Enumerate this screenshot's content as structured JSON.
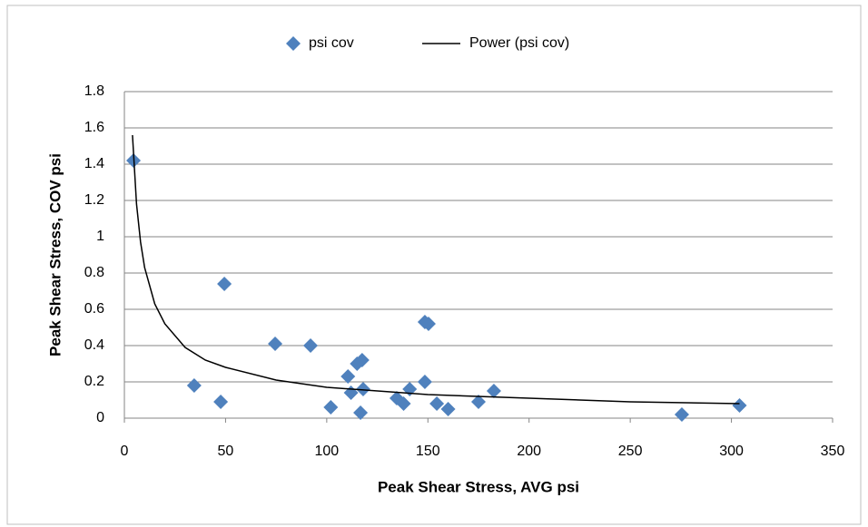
{
  "chart_data": {
    "type": "scatter",
    "xlabel": "Peak Shear Stress, AVG psi",
    "ylabel": "Peak Shear Stress, COV psi",
    "xlim": [
      0,
      350
    ],
    "xticks": [
      0,
      50,
      100,
      150,
      200,
      250,
      300,
      350
    ],
    "ylim": [
      0,
      1.8
    ],
    "yticks": [
      0,
      0.2,
      0.4,
      0.6,
      0.8,
      1,
      1.2,
      1.4,
      1.6,
      1.8
    ],
    "grid": true,
    "legend": "top",
    "series": [
      {
        "name": "psi cov",
        "color": "#4f81bd",
        "mode": "markers",
        "x": [
          4.5,
          49.4,
          34.5,
          47.6,
          74.5,
          92,
          102,
          110.5,
          112,
          115,
          117.5,
          116.7,
          118,
          134.6,
          138,
          141,
          148.5,
          148.5,
          150.3,
          154.4,
          160,
          175,
          182.6,
          275.5,
          304
        ],
        "values": [
          1.42,
          0.74,
          0.18,
          0.09,
          0.41,
          0.4,
          0.06,
          0.23,
          0.14,
          0.3,
          0.32,
          0.03,
          0.16,
          0.11,
          0.08,
          0.16,
          0.2,
          0.53,
          0.52,
          0.08,
          0.05,
          0.09,
          0.15,
          0.02,
          0.07
        ]
      },
      {
        "name": "Power (psi cov)",
        "color": "#000000",
        "mode": "line",
        "x": [
          4,
          6,
          8,
          10,
          15,
          20,
          30,
          40,
          50,
          75,
          100,
          150,
          200,
          250,
          304
        ],
        "values": [
          1.56,
          1.18,
          0.97,
          0.83,
          0.63,
          0.52,
          0.39,
          0.32,
          0.28,
          0.21,
          0.17,
          0.13,
          0.11,
          0.09,
          0.08
        ]
      }
    ]
  }
}
